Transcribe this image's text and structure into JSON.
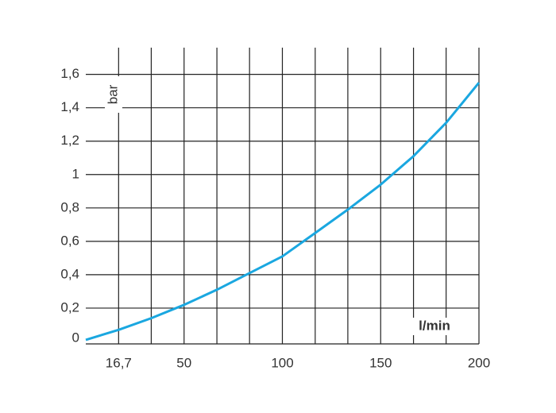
{
  "chart_data": {
    "type": "line",
    "x_label": "l/min",
    "y_label": "bar",
    "x": [
      0,
      16.7,
      33.3,
      50,
      66.7,
      83.3,
      100,
      116.7,
      133.3,
      150,
      166.7,
      183.3,
      200
    ],
    "series": [
      {
        "name": "bar",
        "color": "#1aa7e0",
        "values": [
          0.01,
          0.07,
          0.14,
          0.22,
          0.31,
          0.41,
          0.51,
          0.65,
          0.79,
          0.94,
          1.11,
          1.31,
          1.55
        ]
      }
    ],
    "xlim": [
      0,
      200
    ],
    "ylim": [
      0,
      1.76
    ],
    "xticks": [
      {
        "value": 16.7,
        "label": "16,7"
      },
      50,
      100,
      150,
      200
    ],
    "xgrid": [
      16.7,
      33.3,
      50,
      66.7,
      83.3,
      100,
      116.7,
      133.3,
      150,
      166.7,
      183.3,
      200
    ],
    "yticks": [
      0,
      {
        "value": 0.2,
        "label": "0,2"
      },
      {
        "value": 0.4,
        "label": "0,4"
      },
      {
        "value": 0.6,
        "label": "0,6"
      },
      {
        "value": 0.8,
        "label": "0,8"
      },
      1,
      {
        "value": 1.2,
        "label": "1,2"
      },
      {
        "value": 1.4,
        "label": "1,4"
      },
      {
        "value": 1.6,
        "label": "1,6"
      }
    ],
    "grid": true
  }
}
